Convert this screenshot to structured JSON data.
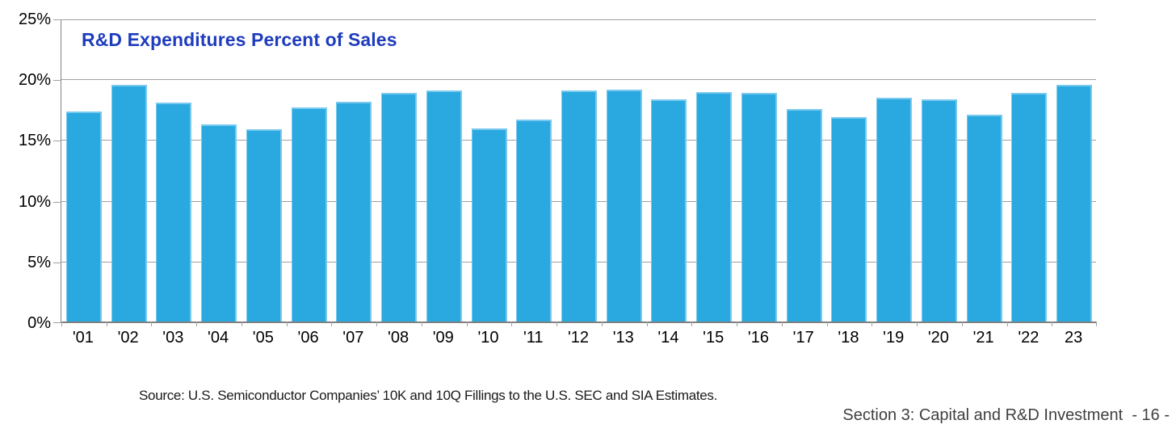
{
  "page": {
    "source_note": "Source: U.S. Semiconductor Companies’ 10K and 10Q Fillings to the U.S. SEC and SIA Estimates.",
    "section_footer": "Section 3: Capital and R&D Investment  - 16 -"
  },
  "chart_data": {
    "type": "bar",
    "title": "R&D Expenditures Percent of Sales",
    "categories": [
      "'01",
      "'02",
      "'03",
      "'04",
      "'05",
      "'06",
      "'07",
      "'08",
      "'09",
      "'10",
      "'11",
      "'12",
      "'13",
      "'14",
      "'15",
      "'16",
      "'17",
      "'18",
      "'19",
      "'20",
      "'21",
      "'22",
      "23"
    ],
    "values": [
      17.3,
      19.5,
      18.0,
      16.2,
      15.8,
      17.6,
      18.1,
      18.8,
      19.0,
      15.9,
      16.6,
      19.0,
      19.1,
      18.3,
      18.9,
      18.8,
      17.5,
      16.8,
      18.4,
      18.3,
      17.0,
      18.8,
      19.5
    ],
    "unit": "%",
    "xlabel": "",
    "ylabel": "",
    "ylim": [
      0,
      25
    ],
    "y_ticks": [
      "25%",
      "20%",
      "15%",
      "10%",
      "5%",
      "0%"
    ],
    "grid": true,
    "legend": null,
    "colors": {
      "bar": "#29A9E0",
      "bar_edge": "#79C9EE",
      "title": "#1E3CBE",
      "grid": "#A0A0A0",
      "axis": "#808080"
    }
  }
}
